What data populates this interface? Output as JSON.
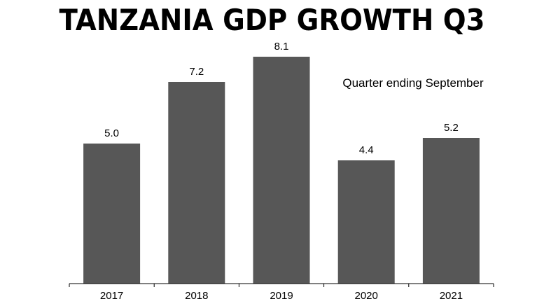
{
  "chart_data": {
    "type": "bar",
    "title": "TANZANIA GDP GROWTH Q3",
    "annotation": "Quarter ending September",
    "categories": [
      "2017",
      "2018",
      "2019",
      "2020",
      "2021"
    ],
    "values": [
      5.0,
      7.2,
      8.1,
      4.4,
      5.2
    ],
    "value_labels": [
      "5.0",
      "7.2",
      "8.1",
      "4.4",
      "5.2"
    ],
    "xlabel": "",
    "ylabel": "",
    "ylim": [
      0,
      8.1
    ],
    "grid": false,
    "legend": "none",
    "bar_color": "#575757"
  }
}
